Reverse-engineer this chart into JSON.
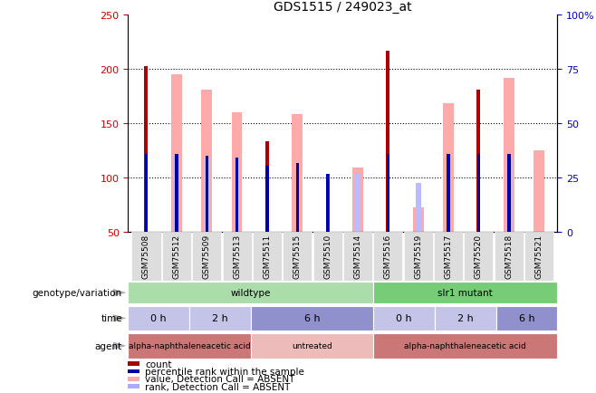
{
  "title": "GDS1515 / 249023_at",
  "samples": [
    "GSM75508",
    "GSM75512",
    "GSM75509",
    "GSM75513",
    "GSM75511",
    "GSM75515",
    "GSM75510",
    "GSM75514",
    "GSM75516",
    "GSM75519",
    "GSM75517",
    "GSM75520",
    "GSM75518",
    "GSM75521"
  ],
  "red_bars": [
    203,
    0,
    0,
    0,
    133,
    0,
    103,
    0,
    217,
    0,
    0,
    181,
    0,
    0
  ],
  "blue_bars": [
    122,
    122,
    120,
    118,
    111,
    113,
    103,
    0,
    122,
    0,
    122,
    122,
    122,
    0
  ],
  "pink_bars": [
    0,
    195,
    181,
    160,
    0,
    158,
    0,
    109,
    0,
    72,
    168,
    0,
    192,
    125
  ],
  "light_blue_bars": [
    0,
    120,
    118,
    0,
    0,
    0,
    0,
    103,
    0,
    95,
    0,
    0,
    118,
    0
  ],
  "ylim_left": [
    50,
    250
  ],
  "ylim_right": [
    0,
    100
  ],
  "yticks_left": [
    50,
    100,
    150,
    200,
    250
  ],
  "yticks_right": [
    0,
    25,
    50,
    75,
    100
  ],
  "ytick_labels_right": [
    "0",
    "25",
    "50",
    "75",
    "100%"
  ],
  "hgrid_vals": [
    100,
    150,
    200
  ],
  "genotype_groups": [
    {
      "label": "wildtype",
      "start": 0,
      "end": 8,
      "color": "#aaddaa"
    },
    {
      "label": "slr1 mutant",
      "start": 8,
      "end": 14,
      "color": "#77cc77"
    }
  ],
  "time_groups": [
    {
      "label": "0 h",
      "start": 0,
      "end": 2,
      "color": "#c4c4e8"
    },
    {
      "label": "2 h",
      "start": 2,
      "end": 4,
      "color": "#c4c4e8"
    },
    {
      "label": "6 h",
      "start": 4,
      "end": 8,
      "color": "#9090cc"
    },
    {
      "label": "0 h",
      "start": 8,
      "end": 10,
      "color": "#c4c4e8"
    },
    {
      "label": "2 h",
      "start": 10,
      "end": 12,
      "color": "#c4c4e8"
    },
    {
      "label": "6 h",
      "start": 12,
      "end": 14,
      "color": "#9090cc"
    }
  ],
  "agent_groups": [
    {
      "label": "alpha-naphthaleneacetic acid",
      "start": 0,
      "end": 4,
      "color": "#cc7777"
    },
    {
      "label": "untreated",
      "start": 4,
      "end": 8,
      "color": "#eebbbb"
    },
    {
      "label": "alpha-naphthaleneacetic acid",
      "start": 8,
      "end": 14,
      "color": "#cc7777"
    }
  ],
  "legend_items": [
    {
      "label": "count",
      "color": "#aa0000",
      "marker": "s"
    },
    {
      "label": "percentile rank within the sample",
      "color": "#0000aa",
      "marker": "s"
    },
    {
      "label": "value, Detection Call = ABSENT",
      "color": "#ffaaaa",
      "marker": "s"
    },
    {
      "label": "rank, Detection Call = ABSENT",
      "color": "#aaaaff",
      "marker": "s"
    }
  ],
  "row_labels": [
    "genotype/variation",
    "time",
    "agent"
  ],
  "left_ytick_color": "#cc0000",
  "right_ytick_color": "#0000cc",
  "bar_color_red": "#aa0000",
  "bar_color_blue": "#0000aa",
  "bar_color_pink": "#ffaaaa",
  "bar_color_lightblue": "#bbbbff"
}
